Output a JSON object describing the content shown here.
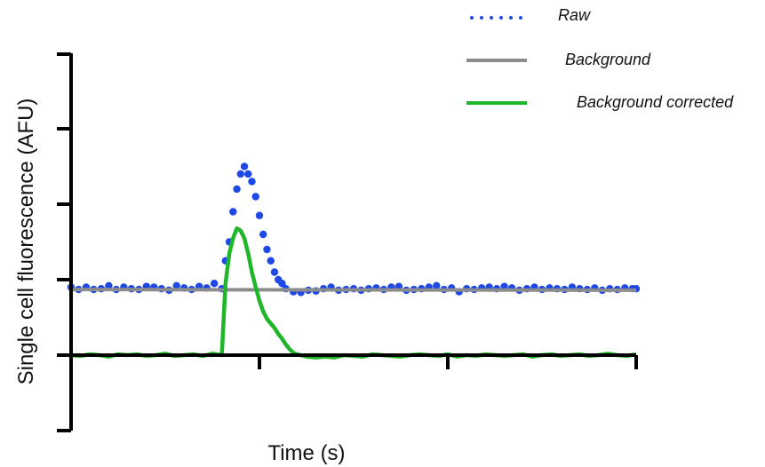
{
  "chart_data": {
    "type": "line",
    "title": "",
    "xlabel": "Time (s)",
    "ylabel": "Single cell fluorescence (AFU)",
    "xlim": [
      0,
      300
    ],
    "ylim": [
      -1.0,
      4.0
    ],
    "x_ticks": [
      0,
      100,
      200,
      300
    ],
    "y_ticks": [
      -1,
      0,
      1,
      2,
      3
    ],
    "tick_labels_shown": false,
    "grid": false,
    "legend_position": "top-right",
    "series": [
      {
        "name": "Raw",
        "style": "dotted",
        "color": "#1f49e6",
        "x": [
          0,
          4,
          8,
          12,
          16,
          20,
          24,
          28,
          32,
          36,
          40,
          44,
          48,
          52,
          56,
          60,
          64,
          68,
          72,
          76,
          80,
          82,
          84,
          86,
          88,
          90,
          92,
          94,
          96,
          98,
          100,
          102,
          104,
          106,
          108,
          110,
          112,
          114,
          118,
          122,
          126,
          130,
          134,
          138,
          142,
          146,
          150,
          154,
          158,
          162,
          166,
          170,
          174,
          178,
          182,
          186,
          190,
          194,
          198,
          202,
          206,
          210,
          214,
          218,
          222,
          226,
          230,
          234,
          238,
          242,
          246,
          250,
          254,
          258,
          262,
          266,
          270,
          274,
          278,
          282,
          286,
          290,
          294,
          298,
          300
        ],
        "y": [
          0.9,
          0.87,
          0.9,
          0.87,
          0.88,
          0.92,
          0.87,
          0.9,
          0.88,
          0.87,
          0.91,
          0.9,
          0.88,
          0.86,
          0.92,
          0.89,
          0.87,
          0.91,
          0.89,
          0.95,
          0.88,
          1.25,
          1.5,
          1.9,
          2.2,
          2.4,
          2.5,
          2.4,
          2.3,
          2.1,
          1.85,
          1.6,
          1.4,
          1.25,
          1.1,
          1.0,
          0.95,
          0.88,
          0.84,
          0.83,
          0.86,
          0.85,
          0.88,
          0.9,
          0.86,
          0.87,
          0.88,
          0.86,
          0.88,
          0.89,
          0.87,
          0.9,
          0.91,
          0.86,
          0.87,
          0.88,
          0.9,
          0.92,
          0.87,
          0.89,
          0.84,
          0.88,
          0.87,
          0.89,
          0.9,
          0.88,
          0.91,
          0.89,
          0.86,
          0.88,
          0.9,
          0.87,
          0.89,
          0.88,
          0.87,
          0.9,
          0.88,
          0.87,
          0.89,
          0.86,
          0.88,
          0.87,
          0.89,
          0.88,
          0.88
        ]
      },
      {
        "name": "Background",
        "style": "solid",
        "color": "#8c8c8c",
        "x": [
          0,
          300
        ],
        "y": [
          0.87,
          0.86
        ]
      },
      {
        "name": "Background corrected",
        "style": "solid",
        "color": "#1fb62a",
        "x": [
          0,
          5,
          10,
          15,
          20,
          25,
          30,
          35,
          40,
          45,
          50,
          55,
          60,
          65,
          70,
          75,
          80,
          82,
          84,
          86,
          88,
          90,
          92,
          94,
          96,
          98,
          100,
          102,
          104,
          106,
          108,
          110,
          112,
          114,
          116,
          118,
          120,
          122,
          125,
          130,
          135,
          140,
          145,
          150,
          155,
          160,
          165,
          170,
          175,
          180,
          185,
          190,
          195,
          200,
          205,
          210,
          215,
          220,
          225,
          230,
          235,
          240,
          245,
          250,
          255,
          260,
          265,
          270,
          275,
          280,
          285,
          290,
          295,
          300
        ],
        "y": [
          0.0,
          -0.01,
          0.01,
          0.0,
          -0.02,
          0.01,
          0.0,
          0.01,
          -0.01,
          0.0,
          0.02,
          -0.01,
          0.0,
          0.01,
          -0.01,
          0.02,
          0.0,
          0.95,
          1.35,
          1.55,
          1.68,
          1.65,
          1.55,
          1.35,
          1.1,
          0.9,
          0.72,
          0.58,
          0.48,
          0.42,
          0.36,
          0.28,
          0.22,
          0.14,
          0.08,
          0.03,
          0.01,
          0.0,
          -0.02,
          -0.03,
          -0.02,
          -0.03,
          0.0,
          -0.01,
          -0.02,
          0.01,
          0.0,
          -0.01,
          -0.02,
          0.0,
          0.01,
          0.0,
          -0.01,
          0.01,
          -0.02,
          0.0,
          -0.01,
          0.01,
          0.0,
          -0.01,
          0.0,
          0.01,
          -0.02,
          0.0,
          0.01,
          -0.01,
          0.0,
          0.01,
          -0.01,
          0.0,
          0.02,
          0.0,
          -0.01,
          0.01
        ]
      }
    ]
  }
}
